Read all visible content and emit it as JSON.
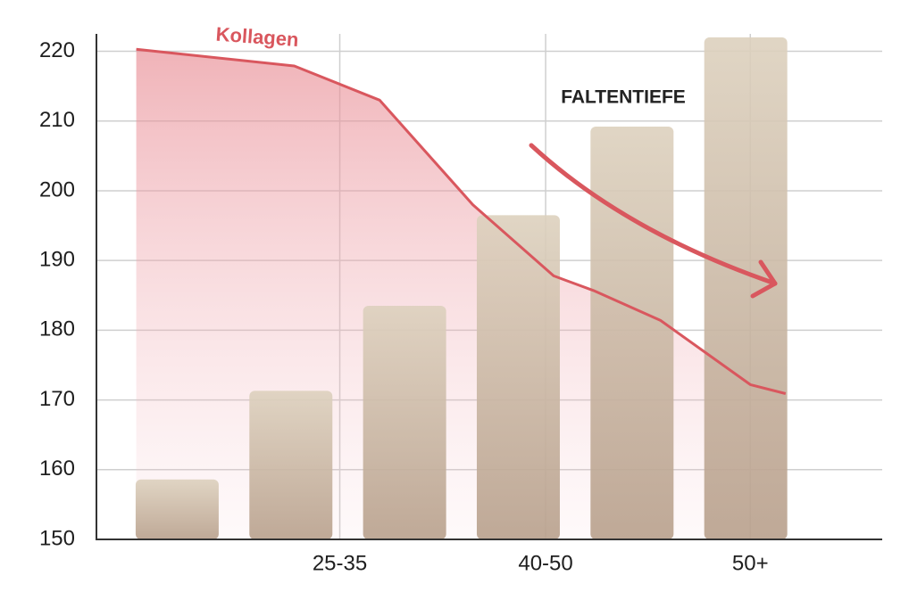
{
  "chart_data": {
    "type": "bar",
    "categories": [
      null,
      null,
      null,
      null,
      null,
      null
    ],
    "values": [
      158.6,
      171.3,
      183.5,
      196.5,
      209.2,
      222
    ],
    "color": "#c8b7a3",
    "xlim": [
      -0.71,
      6.2
    ],
    "xticks": [
      {
        "value": 1.43,
        "label": "25-35"
      },
      {
        "value": 3.24,
        "label": "40-50"
      },
      {
        "value": 5.04,
        "label": "50+"
      }
    ],
    "ylim": [
      150,
      222.5
    ],
    "yticks": [
      150,
      160,
      170,
      180,
      190,
      200,
      210,
      220
    ],
    "grid": true,
    "annotation": "FALTENTIEFE",
    "line": {
      "name": "Kollagen",
      "color": "#d9575e",
      "x": [
        -0.36,
        1.03,
        1.78,
        2.6,
        3.31,
        3.66,
        4.25,
        5.04,
        5.35
      ],
      "values": [
        220.3,
        217.9,
        213.0,
        198.0,
        187.8,
        185.7,
        181.4,
        172.2,
        170.9
      ]
    }
  }
}
